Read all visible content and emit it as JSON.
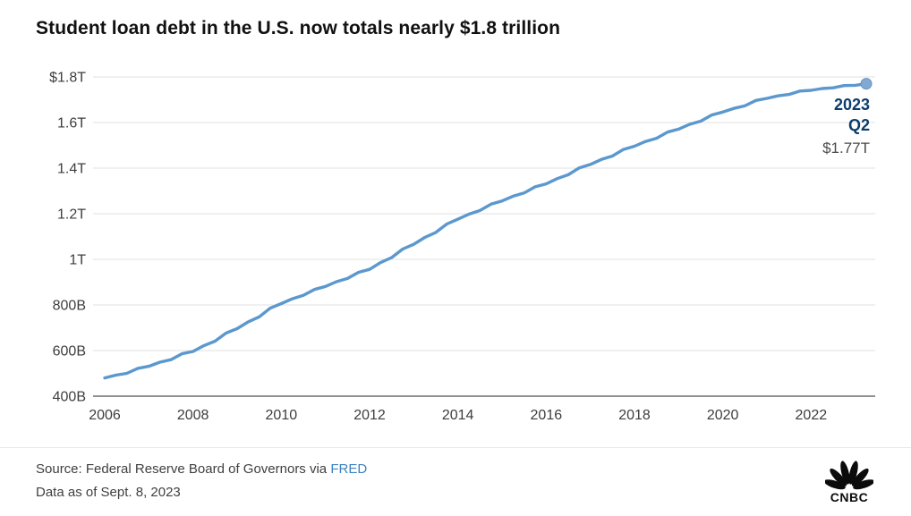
{
  "chart_data": {
    "type": "line",
    "title": "Student loan debt in the U.S. now totals nearly $1.8 trillion",
    "unit": "billions of USD",
    "x_start": 2006,
    "x_step": 0.25,
    "values": [
      480,
      492,
      500,
      522,
      531,
      549,
      560,
      586,
      596,
      622,
      641,
      677,
      696,
      726,
      748,
      786,
      806,
      827,
      842,
      868,
      881,
      902,
      916,
      943,
      956,
      986,
      1008,
      1045,
      1066,
      1096,
      1118,
      1155,
      1176,
      1198,
      1214,
      1242,
      1256,
      1277,
      1291,
      1318,
      1331,
      1354,
      1371,
      1401,
      1416,
      1438,
      1453,
      1482,
      1496,
      1517,
      1531,
      1558,
      1571,
      1592,
      1606,
      1633,
      1646,
      1662,
      1673,
      1697,
      1706,
      1717,
      1723,
      1738,
      1741,
      1749,
      1752,
      1762,
      1763,
      1770
    ],
    "yticks": [
      {
        "label": "$1.8T",
        "value": 1800
      },
      {
        "label": "1.6T",
        "value": 1600
      },
      {
        "label": "1.4T",
        "value": 1400
      },
      {
        "label": "1.2T",
        "value": 1200
      },
      {
        "label": "1T",
        "value": 1000
      },
      {
        "label": "800B",
        "value": 800
      },
      {
        "label": "600B",
        "value": 600
      },
      {
        "label": "400B",
        "value": 400
      }
    ],
    "xticks": [
      2006,
      2008,
      2010,
      2012,
      2014,
      2016,
      2018,
      2020,
      2022
    ],
    "ylim": [
      400,
      1800
    ],
    "grid": true,
    "legend": "none",
    "line_color": "#5b98ce",
    "marker_color": "#82a8d4",
    "annotation": {
      "year": "2023",
      "quarter": "Q2",
      "value": "$1.77T"
    }
  },
  "footer": {
    "source_prefix": "Source: Federal Reserve Board of Governors via ",
    "source_link": "FRED",
    "data_as_of": "Data as of Sept. 8, 2023",
    "logo": "CNBC"
  }
}
